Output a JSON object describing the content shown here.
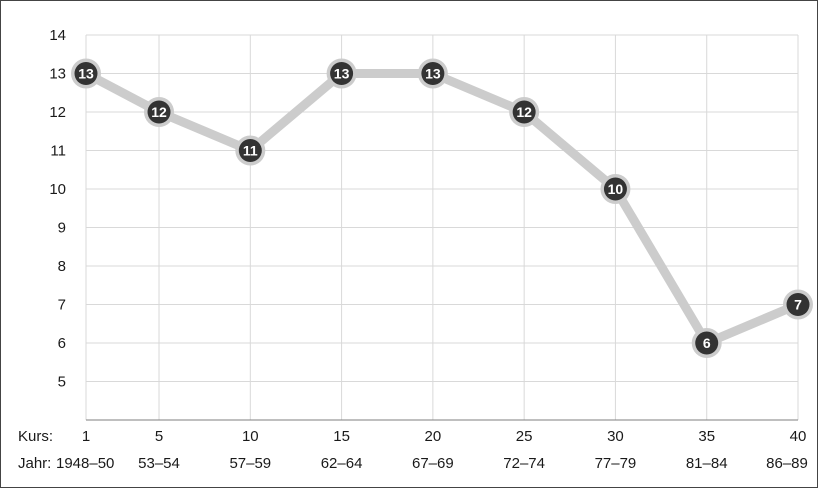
{
  "chart_data": {
    "type": "line",
    "xlabel_prefix": "Kurs:",
    "period_prefix": "Jahr:",
    "x": [
      1,
      5,
      10,
      15,
      20,
      25,
      30,
      35,
      40
    ],
    "periods": [
      "1948–50",
      "53–54",
      "57–59",
      "62–64",
      "67–69",
      "72–74",
      "77–79",
      "81–84",
      "86–89"
    ],
    "series": [
      {
        "values": [
          13,
          12,
          11,
          13,
          13,
          12,
          10,
          6,
          7
        ]
      }
    ],
    "data_labels": [
      "13",
      "12",
      "11",
      "13",
      "13",
      "12",
      "10",
      "6",
      "7"
    ],
    "y_ticks": [
      "5",
      "6",
      "7",
      "8",
      "9",
      "10",
      "11",
      "12",
      "13",
      "14"
    ],
    "ylim": [
      4,
      14
    ],
    "xlim": [
      1,
      40
    ],
    "grid": true,
    "colors": {
      "line": "#cccccc",
      "marker": "#333333",
      "marker_ring": "#cccccc",
      "grid": "#d9d9d9",
      "axis": "#7f7f7f"
    }
  }
}
